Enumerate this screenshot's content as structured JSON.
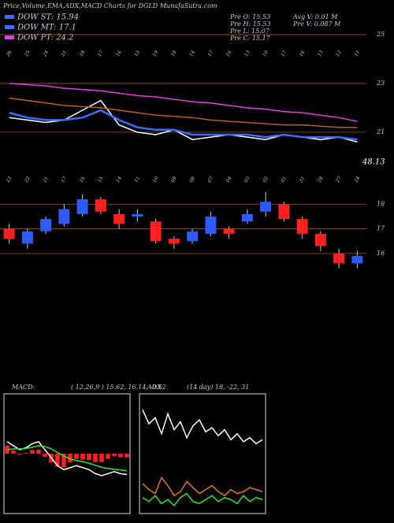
{
  "header": {
    "title": "Price,Volume,EMA,ADX,MACD Charts for DGLD MunafaSutra.com",
    "legend": [
      {
        "name": "DOW ST: 15.94",
        "color": "#3b6cff"
      },
      {
        "name": "DOW MT: 17.1",
        "color": "#3b6cff"
      },
      {
        "name": "DOW PT: 24.2",
        "color": "#e040e0"
      }
    ],
    "stats": [
      "Pre  O: 15.53",
      "Pre  H: 15.53",
      "Pre  L: 15.07",
      "Pre  C: 15.17"
    ],
    "volume": [
      "Avg V: 0.01 M",
      "Pre  V: 0.087 M"
    ]
  },
  "chart_data": [
    {
      "type": "line",
      "annotation": "48.13",
      "categories": [
        "26",
        "25",
        "24",
        "21",
        "18",
        "17",
        "16",
        "15",
        "19",
        "18",
        "14",
        "17",
        "16",
        "13",
        "10",
        "17",
        "16",
        "13",
        "12",
        "11"
      ],
      "ylim": [
        19.9,
        25.45
      ],
      "yticks": [
        21,
        23,
        25
      ],
      "grid": true,
      "series": [
        {
          "name": "Price",
          "color": "#ffffff",
          "values": [
            21.6,
            21.5,
            21.4,
            21.5,
            21.9,
            22.3,
            21.3,
            21.0,
            20.9,
            21.1,
            20.7,
            20.8,
            20.9,
            20.8,
            20.7,
            20.9,
            20.8,
            20.7,
            20.8,
            20.6
          ]
        },
        {
          "name": "EMA short",
          "color": "#3b6cff",
          "values": [
            21.8,
            21.6,
            21.5,
            21.5,
            21.6,
            21.9,
            21.5,
            21.2,
            21.1,
            21.1,
            20.9,
            20.9,
            20.9,
            20.9,
            20.8,
            20.9,
            20.8,
            20.8,
            20.8,
            20.7
          ]
        },
        {
          "name": "EMA long",
          "color": "#e040e0",
          "values": [
            23.0,
            22.95,
            22.9,
            22.8,
            22.75,
            22.7,
            22.6,
            22.5,
            22.45,
            22.35,
            22.25,
            22.2,
            22.1,
            22.0,
            21.95,
            21.85,
            21.8,
            21.7,
            21.6,
            21.45
          ]
        },
        {
          "name": "EMA mid",
          "color": "#b8601c",
          "values": [
            22.4,
            22.3,
            22.2,
            22.1,
            22.05,
            22.0,
            21.9,
            21.8,
            21.7,
            21.65,
            21.6,
            21.5,
            21.45,
            21.4,
            21.35,
            21.3,
            21.3,
            21.25,
            21.2,
            21.2
          ]
        }
      ]
    },
    {
      "type": "candlestick",
      "categories": [
        "23",
        "22",
        "21",
        "17",
        "16",
        "15",
        "14",
        "11",
        "10",
        "09",
        "08",
        "07",
        "04",
        "03",
        "02",
        "01",
        "31",
        "28",
        "27",
        "24"
      ],
      "ylim": [
        15.1,
        19.0
      ],
      "yticks": [
        16,
        17,
        18
      ],
      "grid": true,
      "up_color": "#2d5bff",
      "down_color": "#ff2020",
      "open": [
        17.0,
        16.4,
        16.9,
        17.2,
        17.6,
        18.2,
        17.6,
        17.5,
        17.3,
        16.6,
        16.5,
        16.8,
        17.0,
        17.3,
        17.7,
        18.0,
        17.4,
        16.8,
        16.0,
        15.6
      ],
      "high": [
        17.2,
        17.0,
        17.5,
        18.0,
        18.4,
        18.3,
        17.8,
        17.8,
        17.4,
        16.7,
        17.0,
        17.7,
        17.1,
        17.8,
        18.5,
        18.1,
        17.5,
        16.9,
        16.2,
        16.1
      ],
      "low": [
        16.4,
        16.2,
        16.8,
        17.1,
        17.5,
        17.6,
        17.0,
        17.3,
        16.4,
        16.2,
        16.4,
        16.7,
        16.6,
        17.2,
        17.5,
        17.3,
        16.6,
        16.1,
        15.4,
        15.4
      ],
      "close": [
        16.6,
        16.9,
        17.4,
        17.8,
        18.2,
        17.7,
        17.2,
        17.6,
        16.5,
        16.4,
        16.9,
        17.5,
        16.8,
        17.6,
        18.1,
        17.4,
        16.8,
        16.3,
        15.6,
        15.9
      ]
    },
    {
      "type": "line",
      "label": "MACD:",
      "title": "( 12,26,9 ) 15.62, 16.14, -0.52",
      "ylim": [
        -1.5,
        1.5
      ],
      "series": [
        {
          "name": "Histogram",
          "color": "#ff2020",
          "style": "bar",
          "values": [
            0.2,
            0.08,
            -0.02,
            0.02,
            0.09,
            0.1,
            -0.08,
            -0.22,
            -0.33,
            -0.34,
            -0.22,
            -0.13,
            -0.15,
            -0.16,
            -0.21,
            -0.21,
            -0.13,
            -0.06,
            -0.09,
            -0.09
          ]
        },
        {
          "name": "MACD",
          "color": "#ffffff",
          "values": [
            0.3,
            0.2,
            0.1,
            0.15,
            0.25,
            0.3,
            0.1,
            -0.1,
            -0.3,
            -0.4,
            -0.35,
            -0.3,
            -0.35,
            -0.4,
            -0.5,
            -0.55,
            -0.5,
            -0.45,
            -0.5,
            -0.52
          ]
        },
        {
          "name": "Signal",
          "color": "#2ee82e",
          "values": [
            0.1,
            0.12,
            0.12,
            0.13,
            0.16,
            0.2,
            0.18,
            0.12,
            0.03,
            -0.06,
            -0.13,
            -0.17,
            -0.2,
            -0.24,
            -0.29,
            -0.34,
            -0.37,
            -0.39,
            -0.41,
            -0.43
          ]
        }
      ]
    },
    {
      "type": "line",
      "label": "ADX",
      "title": "(14 day) 18, -22, 31",
      "ylim": [
        0,
        60
      ],
      "series": [
        {
          "name": "ADX",
          "color": "#ffffff",
          "values": [
            52,
            45,
            48,
            40,
            50,
            42,
            46,
            38,
            44,
            47,
            41,
            43,
            39,
            42,
            37,
            40,
            36,
            38,
            35,
            37
          ]
        },
        {
          "name": "+DI",
          "color": "#e07a10",
          "values": [
            15,
            12,
            10,
            18,
            14,
            9,
            11,
            16,
            13,
            10,
            12,
            14,
            11,
            9,
            12,
            10,
            11,
            13,
            12,
            11
          ]
        },
        {
          "name": "-DI",
          "color": "#2ee82e",
          "values": [
            8,
            6,
            9,
            5,
            7,
            4,
            8,
            10,
            6,
            5,
            7,
            9,
            6,
            8,
            7,
            5,
            9,
            6,
            8,
            7
          ]
        }
      ]
    }
  ]
}
